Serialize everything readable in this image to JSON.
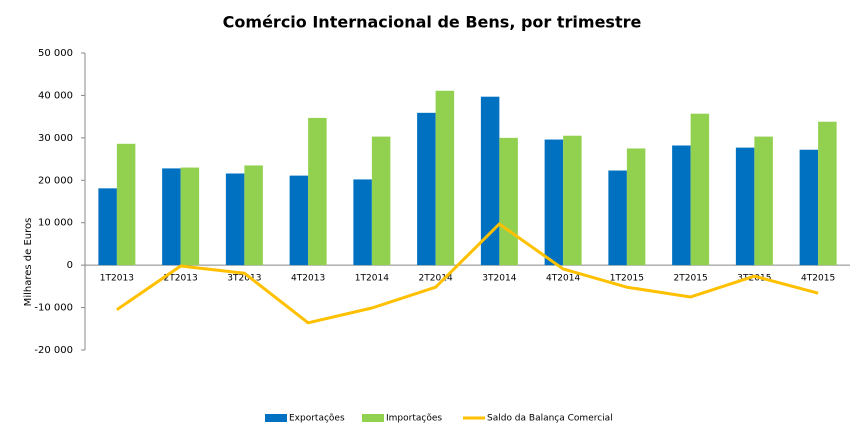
{
  "chart_data": {
    "type": "bar-line",
    "title": "Comércio Internacional de Bens, por trimestre",
    "y_label": "Milhares de Euros",
    "categories": [
      "1T2013",
      "2T2013",
      "3T2013",
      "4T2013",
      "1T2014",
      "2T2014",
      "3T2014",
      "4T2014",
      "1T2015",
      "2T2015",
      "3T2015",
      "4T2015"
    ],
    "series": [
      {
        "name": "Exportações",
        "type": "bar",
        "color": "#0070c0",
        "values": [
          18100,
          22800,
          21600,
          21100,
          20200,
          35900,
          39700,
          29600,
          22300,
          28200,
          27700,
          27200
        ]
      },
      {
        "name": "Importações",
        "type": "bar",
        "color": "#92d050",
        "values": [
          28600,
          23000,
          23500,
          34700,
          30300,
          41100,
          30000,
          30500,
          27500,
          35700,
          30300,
          33800
        ]
      },
      {
        "name": "Saldo da Balança Comercial",
        "type": "line",
        "color": "#ffc000",
        "values": [
          -10500,
          -200,
          -1900,
          -13600,
          -10100,
          -5200,
          9700,
          -900,
          -5200,
          -7500,
          -2600,
          -6600
        ]
      }
    ],
    "ylim": [
      -20000,
      50000
    ],
    "yticks": [
      {
        "value": -20000,
        "label": "-20 000"
      },
      {
        "value": -10000,
        "label": "-10 000"
      },
      0,
      {
        "value": 10000,
        "label": "10 000"
      },
      {
        "value": 20000,
        "label": "20 000"
      },
      {
        "value": 30000,
        "label": "30 000"
      },
      {
        "value": 40000,
        "label": "40 000"
      },
      {
        "value": 50000,
        "label": "50 000"
      }
    ],
    "grid": false,
    "legend": "bottom"
  }
}
